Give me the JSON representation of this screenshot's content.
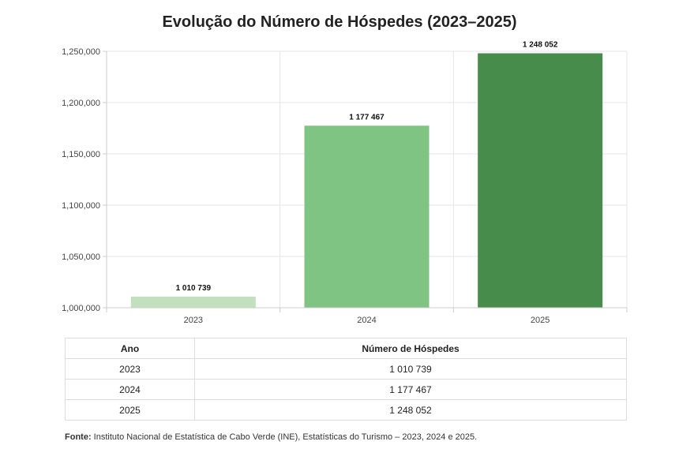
{
  "chart_data": {
    "type": "bar",
    "title": "Evolução do Número de Hóspedes (2023–2025)",
    "categories": [
      "2023",
      "2024",
      "2025"
    ],
    "values": [
      1010739,
      1177467,
      1248052
    ],
    "data_labels": [
      "1 010 739",
      "1 177 467",
      "1 248 052"
    ],
    "colors": [
      "#c2e0bd",
      "#80c483",
      "#478c4b"
    ],
    "ylim": [
      1000000,
      1250000
    ],
    "yticks": [
      1000000,
      1050000,
      1100000,
      1150000,
      1200000,
      1250000
    ],
    "ytick_labels": [
      "1,000,000",
      "1,050,000",
      "1,100,000",
      "1,150,000",
      "1,200,000",
      "1,250,000"
    ],
    "xlabel": "",
    "ylabel": "",
    "grid": true,
    "legend": "none"
  },
  "table": {
    "headers": [
      "Ano",
      "Número de Hóspedes"
    ],
    "rows": [
      [
        "2023",
        "1 010 739"
      ],
      [
        "2024",
        "1 177 467"
      ],
      [
        "2025",
        "1 248 052"
      ]
    ]
  },
  "source": {
    "label": "Fonte:",
    "text": " Instituto Nacional de Estatística de Cabo Verde (INE), Estatísticas do Turismo – 2023, 2024 e 2025."
  }
}
